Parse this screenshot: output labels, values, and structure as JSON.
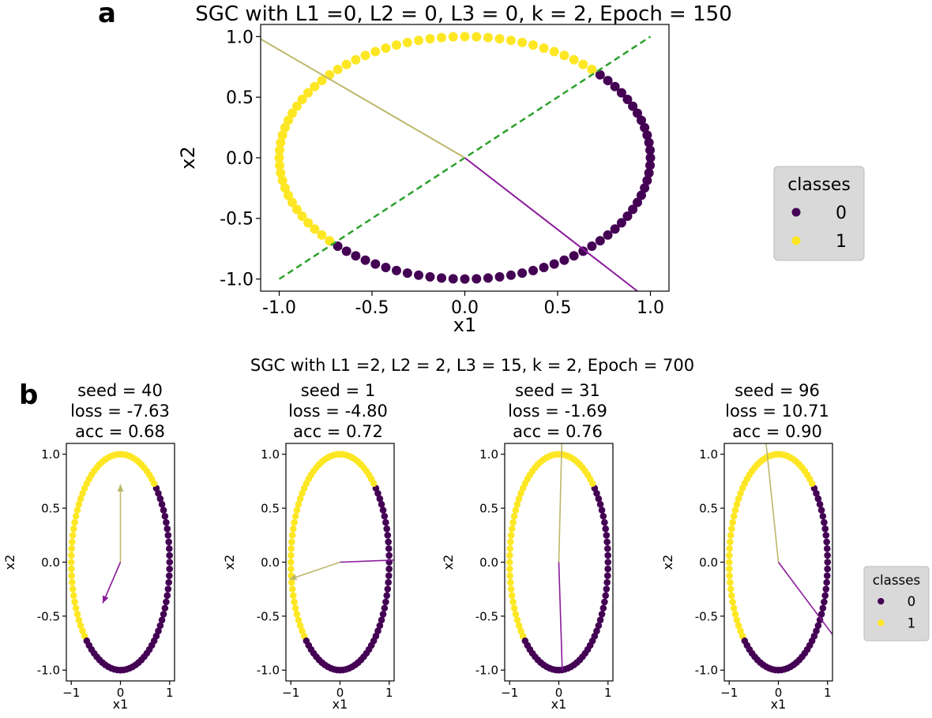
{
  "panel_labels": {
    "a": "a",
    "b": "b"
  },
  "colors": {
    "class0": "#440154",
    "class1": "#fde725",
    "vec0": "#8b1a9b",
    "vec1": "#bdb76b",
    "dashed": "#2ca02c",
    "legend_bg": "#d9d9d9"
  },
  "chart_data": [
    {
      "type": "scatter",
      "panel": "a",
      "title": "SGC with L1 =0, L2 = 0, L3 = 0, k = 2, Epoch = 150",
      "xlabel": "x1",
      "ylabel": "x2",
      "xlim": [
        -1.1,
        1.1
      ],
      "ylim": [
        -1.1,
        1.1
      ],
      "xticks": [
        "-1.0",
        "-0.5",
        "0.0",
        "0.5",
        "1.0"
      ],
      "yticks": [
        "-1.0",
        "-0.5",
        "0.0",
        "0.5",
        "1.0"
      ],
      "grid": false,
      "points": "unit circle, 100 points",
      "class1_angle_range_deg": [
        45,
        224
      ],
      "vectors": [
        {
          "class": 1,
          "from": [
            0,
            0
          ],
          "to": [
            -1.1,
            0.98
          ]
        },
        {
          "class": 0,
          "from": [
            0,
            0
          ],
          "to": [
            0.93,
            -1.1
          ]
        }
      ],
      "dashed_line": {
        "from": [
          -1.0,
          -1.0
        ],
        "to": [
          1.0,
          1.0
        ]
      },
      "legend": {
        "title": "classes",
        "entries": [
          "0",
          "1"
        ],
        "placement": "right"
      }
    },
    {
      "type": "scatter",
      "panel": "b",
      "suptitle": "SGC with L1 =2, L2 = 2, L3 = 15, k = 2, Epoch = 700",
      "xlabel": "x1",
      "ylabel": "x2",
      "xlim": [
        -1.1,
        1.1
      ],
      "ylim": [
        -1.1,
        1.1
      ],
      "xticks": [
        "−1",
        "0",
        "1"
      ],
      "yticks": [
        "-1.0",
        "-0.5",
        "0.0",
        "0.5",
        "1.0"
      ],
      "legend": {
        "title": "classes",
        "entries": [
          "0",
          "1"
        ],
        "placement": "right"
      },
      "subplots": [
        {
          "seed": "seed = 40",
          "loss": "loss = -7.63",
          "acc": "acc = 0.68",
          "class1_angle_range_deg": [
            45,
            224
          ],
          "vectors": [
            {
              "class": 1,
              "to": [
                0.0,
                0.72
              ],
              "arrow": true
            },
            {
              "class": 0,
              "to": [
                -0.36,
                -0.38
              ],
              "arrow": true
            }
          ]
        },
        {
          "seed": "seed = 1",
          "loss": "loss = -4.80",
          "acc": "acc = 0.72",
          "class1_angle_range_deg": [
            45,
            224
          ],
          "vectors": [
            {
              "class": 1,
              "to": [
                -1.03,
                -0.16
              ],
              "arrow": true
            },
            {
              "class": 0,
              "to": [
                1.1,
                0.02
              ],
              "arrow": false
            }
          ]
        },
        {
          "seed": "seed = 31",
          "loss": "loss = -1.69",
          "acc": "acc = 0.76",
          "class1_angle_range_deg": [
            45,
            224
          ],
          "vectors": [
            {
              "class": 1,
              "to": [
                0.06,
                1.1
              ],
              "arrow": false
            },
            {
              "class": 0,
              "to": [
                0.07,
                -1.0
              ],
              "arrow": false
            }
          ]
        },
        {
          "seed": "seed = 96",
          "loss": "loss = 10.71",
          "acc": "acc = 0.90",
          "class1_angle_range_deg": [
            45,
            224
          ],
          "vectors": [
            {
              "class": 1,
              "to": [
                -0.25,
                1.1
              ],
              "arrow": false
            },
            {
              "class": 0,
              "to": [
                1.1,
                -0.67
              ],
              "arrow": false
            }
          ]
        }
      ]
    }
  ]
}
